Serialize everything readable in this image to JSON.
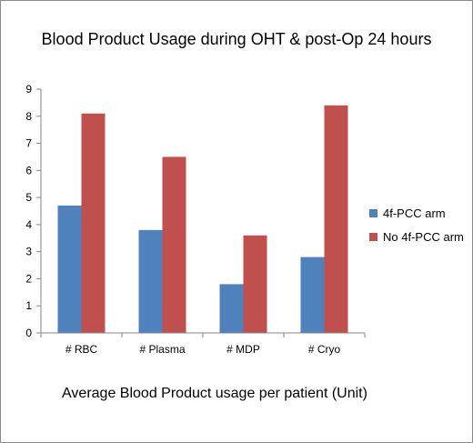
{
  "chart_data": {
    "type": "bar",
    "title": "Blood Product Usage during OHT & post-Op 24 hours",
    "xlabel": "Average Blood Product usage per patient  (Unit)",
    "ylabel": "",
    "ylim": [
      0,
      9
    ],
    "yticks": [
      "0",
      "1",
      "2",
      "3",
      "4",
      "5",
      "6",
      "7",
      "8",
      "9"
    ],
    "grid": false,
    "legend_position": "right",
    "categories": [
      "# RBC",
      "# Plasma",
      "# MDP",
      "# Cryo"
    ],
    "series": [
      {
        "name": "4f-PCC arm",
        "color": "#4f81bd",
        "values": [
          4.7,
          3.8,
          1.8,
          2.8
        ]
      },
      {
        "name": "No 4f-PCC arm",
        "color": "#c0504d",
        "values": [
          8.1,
          6.5,
          3.6,
          8.4
        ]
      }
    ]
  }
}
